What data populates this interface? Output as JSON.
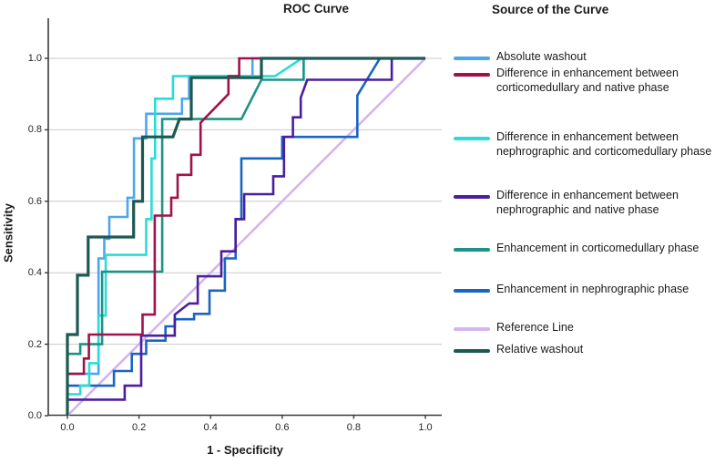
{
  "title": "ROC Curve",
  "legend": {
    "title": "Source of the Curve",
    "position": "right"
  },
  "axes": {
    "x": {
      "label": "1 - Specificity",
      "ticks": [
        "0.0",
        "0.2",
        "0.4",
        "0.6",
        "0.8",
        "1.0"
      ],
      "range": [
        0,
        1
      ]
    },
    "y": {
      "label": "Sensitivity",
      "ticks": [
        "0.0",
        "0.2",
        "0.4",
        "0.6",
        "0.8",
        "1.0"
      ],
      "range": [
        0,
        1
      ]
    }
  },
  "colors": {
    "axis": "#3a3a3a",
    "gridline": "#c9c9c9",
    "background": "#ffffff",
    "text": "#1a1a1a"
  },
  "chart_data": {
    "type": "line",
    "subtype": "roc-step-curves",
    "title": "ROC Curve",
    "xlabel": "1 - Specificity",
    "ylabel": "Sensitivity",
    "xlim": [
      0,
      1
    ],
    "ylim": [
      0,
      1
    ],
    "grid": "horizontal-only",
    "legend_position": "right",
    "series": [
      {
        "name": "Absolute washout",
        "color": "#4DA6EB",
        "width": 2.6,
        "z": 4,
        "points": [
          [
            0,
            0
          ],
          [
            0,
            0.117
          ],
          [
            0.087,
            0.117
          ],
          [
            0.087,
            0.44
          ],
          [
            0.103,
            0.44
          ],
          [
            0.103,
            0.495
          ],
          [
            0.117,
            0.495
          ],
          [
            0.117,
            0.556
          ],
          [
            0.168,
            0.556
          ],
          [
            0.168,
            0.61
          ],
          [
            0.186,
            0.61
          ],
          [
            0.186,
            0.776
          ],
          [
            0.22,
            0.776
          ],
          [
            0.22,
            0.845
          ],
          [
            0.32,
            0.845
          ],
          [
            0.32,
            0.887
          ],
          [
            0.34,
            0.887
          ],
          [
            0.34,
            0.95
          ],
          [
            0.517,
            0.95
          ],
          [
            0.517,
            1
          ],
          [
            1,
            1
          ]
        ]
      },
      {
        "name": "Difference in enhancement between corticomedullary and native phase",
        "color": "#A0124A",
        "width": 2.6,
        "z": 7,
        "points": [
          [
            0,
            0
          ],
          [
            0,
            0.117
          ],
          [
            0.046,
            0.117
          ],
          [
            0.046,
            0.16
          ],
          [
            0.06,
            0.16
          ],
          [
            0.06,
            0.227
          ],
          [
            0.21,
            0.227
          ],
          [
            0.21,
            0.283
          ],
          [
            0.244,
            0.283
          ],
          [
            0.244,
            0.56
          ],
          [
            0.29,
            0.56
          ],
          [
            0.29,
            0.61
          ],
          [
            0.308,
            0.61
          ],
          [
            0.308,
            0.674
          ],
          [
            0.346,
            0.674
          ],
          [
            0.346,
            0.73
          ],
          [
            0.372,
            0.73
          ],
          [
            0.372,
            0.82
          ],
          [
            0.45,
            0.9
          ],
          [
            0.45,
            0.95
          ],
          [
            0.48,
            0.95
          ],
          [
            0.48,
            1
          ],
          [
            1,
            1
          ]
        ]
      },
      {
        "name": "Difference in enhancement between nephrographic and corticomedullary phase",
        "color": "#2BDCD5",
        "width": 2.6,
        "z": 5,
        "points": [
          [
            0,
            0
          ],
          [
            0,
            0.06
          ],
          [
            0.036,
            0.06
          ],
          [
            0.036,
            0.084
          ],
          [
            0.061,
            0.084
          ],
          [
            0.061,
            0.147
          ],
          [
            0.087,
            0.147
          ],
          [
            0.087,
            0.28
          ],
          [
            0.107,
            0.28
          ],
          [
            0.107,
            0.45
          ],
          [
            0.22,
            0.45
          ],
          [
            0.22,
            0.55
          ],
          [
            0.235,
            0.55
          ],
          [
            0.235,
            0.72
          ],
          [
            0.245,
            0.72
          ],
          [
            0.245,
            0.887
          ],
          [
            0.295,
            0.887
          ],
          [
            0.295,
            0.95
          ],
          [
            0.58,
            0.95
          ],
          [
            0.655,
            1
          ],
          [
            1,
            1
          ]
        ]
      },
      {
        "name": "Difference in enhancement between nephrographic and native phase",
        "color": "#4B1E9E",
        "width": 2.6,
        "z": 3,
        "points": [
          [
            0,
            0
          ],
          [
            0,
            0.045
          ],
          [
            0.16,
            0.045
          ],
          [
            0.16,
            0.084
          ],
          [
            0.206,
            0.084
          ],
          [
            0.206,
            0.224
          ],
          [
            0.3,
            0.224
          ],
          [
            0.3,
            0.283
          ],
          [
            0.34,
            0.314
          ],
          [
            0.364,
            0.314
          ],
          [
            0.364,
            0.39
          ],
          [
            0.43,
            0.39
          ],
          [
            0.43,
            0.46
          ],
          [
            0.47,
            0.46
          ],
          [
            0.47,
            0.55
          ],
          [
            0.494,
            0.55
          ],
          [
            0.494,
            0.62
          ],
          [
            0.575,
            0.62
          ],
          [
            0.575,
            0.67
          ],
          [
            0.605,
            0.67
          ],
          [
            0.605,
            0.78
          ],
          [
            0.63,
            0.78
          ],
          [
            0.63,
            0.835
          ],
          [
            0.652,
            0.835
          ],
          [
            0.652,
            0.89
          ],
          [
            0.67,
            0.94
          ],
          [
            0.906,
            0.94
          ],
          [
            0.906,
            1
          ],
          [
            1,
            1
          ]
        ]
      },
      {
        "name": "Enhancement in corticomedullary phase",
        "color": "#1B9488",
        "width": 2.6,
        "z": 6,
        "points": [
          [
            0,
            0
          ],
          [
            0,
            0.173
          ],
          [
            0.036,
            0.173
          ],
          [
            0.036,
            0.2
          ],
          [
            0.097,
            0.2
          ],
          [
            0.097,
            0.403
          ],
          [
            0.265,
            0.403
          ],
          [
            0.265,
            0.83
          ],
          [
            0.486,
            0.83
          ],
          [
            0.542,
            0.94
          ],
          [
            0.66,
            0.94
          ],
          [
            0.66,
            1
          ],
          [
            1,
            1
          ]
        ]
      },
      {
        "name": "Enhancement in nephrographic phase",
        "color": "#1A64C4",
        "width": 2.6,
        "z": 2,
        "points": [
          [
            0,
            0
          ],
          [
            0,
            0.084
          ],
          [
            0.13,
            0.084
          ],
          [
            0.13,
            0.125
          ],
          [
            0.18,
            0.125
          ],
          [
            0.18,
            0.173
          ],
          [
            0.22,
            0.173
          ],
          [
            0.22,
            0.21
          ],
          [
            0.274,
            0.21
          ],
          [
            0.274,
            0.25
          ],
          [
            0.3,
            0.25
          ],
          [
            0.3,
            0.27
          ],
          [
            0.354,
            0.27
          ],
          [
            0.354,
            0.285
          ],
          [
            0.397,
            0.285
          ],
          [
            0.397,
            0.35
          ],
          [
            0.44,
            0.35
          ],
          [
            0.44,
            0.44
          ],
          [
            0.47,
            0.44
          ],
          [
            0.47,
            0.55
          ],
          [
            0.486,
            0.55
          ],
          [
            0.486,
            0.72
          ],
          [
            0.6,
            0.72
          ],
          [
            0.6,
            0.78
          ],
          [
            0.81,
            0.78
          ],
          [
            0.81,
            0.896
          ],
          [
            0.873,
            1
          ],
          [
            1,
            1
          ]
        ]
      },
      {
        "name": "Reference Line",
        "color": "#D2B5F2",
        "width": 2.6,
        "z": 1,
        "points": [
          [
            0,
            0
          ],
          [
            1,
            1
          ]
        ]
      },
      {
        "name": "Relative washout",
        "color": "#1D5953",
        "width": 3.2,
        "z": 8,
        "points": [
          [
            0,
            0
          ],
          [
            0,
            0.227
          ],
          [
            0.028,
            0.227
          ],
          [
            0.028,
            0.393
          ],
          [
            0.058,
            0.393
          ],
          [
            0.058,
            0.5
          ],
          [
            0.185,
            0.5
          ],
          [
            0.185,
            0.6
          ],
          [
            0.21,
            0.6
          ],
          [
            0.21,
            0.78
          ],
          [
            0.295,
            0.78
          ],
          [
            0.313,
            0.83
          ],
          [
            0.346,
            0.83
          ],
          [
            0.346,
            0.946
          ],
          [
            0.542,
            0.946
          ],
          [
            0.542,
            1
          ],
          [
            1,
            1
          ]
        ]
      }
    ]
  }
}
